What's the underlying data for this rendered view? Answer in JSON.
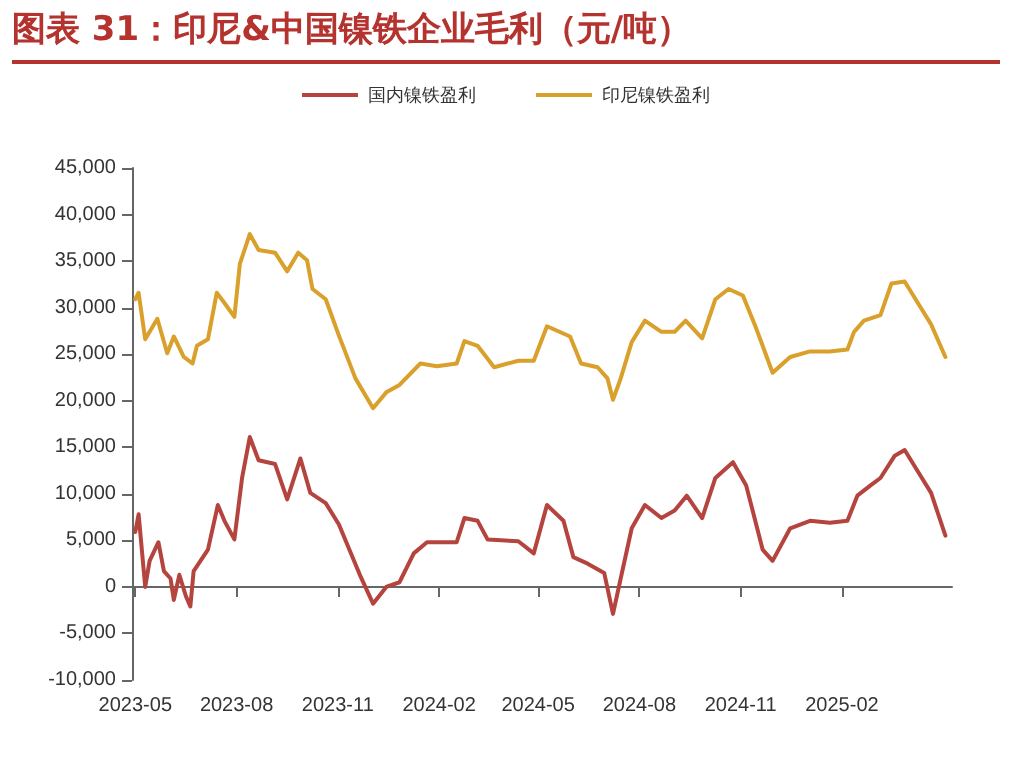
{
  "chart_data": {
    "type": "line",
    "title": "图表 31：印尼&中国镍铁企业毛利（元/吨）",
    "xlim": [
      "2023-04-28",
      "2025-05-12"
    ],
    "xticks": [
      "2023-05",
      "2023-08",
      "2023-11",
      "2024-02",
      "2024-05",
      "2024-08",
      "2024-11",
      "2025-02"
    ],
    "ylim": [
      -10000,
      45000
    ],
    "yticks": [
      {
        "value": -10000,
        "label": "-10,000"
      },
      {
        "value": -5000,
        "label": "-5,000"
      },
      {
        "value": 0,
        "label": "0"
      },
      {
        "value": 5000,
        "label": "5,000"
      },
      {
        "value": 10000,
        "label": "10,000"
      },
      {
        "value": 15000,
        "label": "15,000"
      },
      {
        "value": 20000,
        "label": "20,000"
      },
      {
        "value": 25000,
        "label": "25,000"
      },
      {
        "value": 30000,
        "label": "30,000"
      },
      {
        "value": 35000,
        "label": "35,000"
      },
      {
        "value": 40000,
        "label": "40,000"
      },
      {
        "value": 45000,
        "label": "45,000"
      }
    ],
    "legend": "top",
    "marker": "none",
    "line_style": "solid",
    "series": [
      {
        "name": "国内镍铁盈利",
        "color": "#b5443f",
        "x": [
          "2023-05-01",
          "2023-05-04",
          "2023-05-10",
          "2023-05-14",
          "2023-05-22",
          "2023-05-27",
          "2023-06-02",
          "2023-06-05",
          "2023-06-10",
          "2023-06-16",
          "2023-06-20",
          "2023-06-23",
          "2023-07-06",
          "2023-07-15",
          "2023-07-21",
          "2023-07-30",
          "2023-08-06",
          "2023-08-13",
          "2023-08-21",
          "2023-09-05",
          "2023-09-16",
          "2023-09-28",
          "2023-10-07",
          "2023-10-21",
          "2023-11-02",
          "2023-11-21",
          "2023-12-03",
          "2023-12-15",
          "2023-12-27",
          "2024-01-09",
          "2024-01-21",
          "2024-02-17",
          "2024-02-24",
          "2024-03-07",
          "2024-03-16",
          "2024-04-13",
          "2024-04-27",
          "2024-05-09",
          "2024-05-24",
          "2024-06-02",
          "2024-06-15",
          "2024-06-30",
          "2024-07-08",
          "2024-07-15",
          "2024-07-25",
          "2024-08-06",
          "2024-08-21",
          "2024-09-02",
          "2024-09-13",
          "2024-09-27",
          "2024-10-09",
          "2024-10-25",
          "2024-11-06",
          "2024-11-21",
          "2024-11-30",
          "2024-12-16",
          "2025-01-03",
          "2025-01-21",
          "2025-02-06",
          "2025-02-15",
          "2025-02-27",
          "2025-03-08",
          "2025-03-21",
          "2025-03-30",
          "2025-04-11",
          "2025-04-23",
          "2025-05-06"
        ],
        "values": [
          5900,
          7800,
          0,
          2800,
          4800,
          1700,
          900,
          -1400,
          1300,
          -1000,
          -2100,
          1700,
          4000,
          8800,
          7100,
          5100,
          11700,
          16100,
          13600,
          13200,
          9400,
          13800,
          10100,
          9000,
          6700,
          1300,
          -1800,
          0,
          500,
          3600,
          4800,
          4800,
          7400,
          7100,
          5100,
          4900,
          3600,
          8800,
          7100,
          3200,
          2500,
          1500,
          -2900,
          900,
          6300,
          8800,
          7400,
          8200,
          9800,
          7400,
          11700,
          13400,
          10900,
          4000,
          2800,
          6300,
          7100,
          6900,
          7100,
          9800,
          10900,
          11700,
          14100,
          14700,
          12400,
          10100,
          5500
        ]
      },
      {
        "name": "印尼镍铁盈利",
        "color": "#d9a02c",
        "x": [
          "2023-05-01",
          "2023-05-04",
          "2023-05-10",
          "2023-05-21",
          "2023-05-30",
          "2023-06-05",
          "2023-06-14",
          "2023-06-22",
          "2023-06-26",
          "2023-07-06",
          "2023-07-14",
          "2023-07-21",
          "2023-07-30",
          "2023-08-04",
          "2023-08-13",
          "2023-08-21",
          "2023-09-05",
          "2023-09-16",
          "2023-09-26",
          "2023-10-04",
          "2023-10-09",
          "2023-10-21",
          "2023-11-02",
          "2023-11-17",
          "2023-12-03",
          "2023-12-15",
          "2023-12-27",
          "2024-01-15",
          "2024-01-30",
          "2024-02-17",
          "2024-02-24",
          "2024-03-07",
          "2024-03-22",
          "2024-04-13",
          "2024-04-27",
          "2024-05-09",
          "2024-05-30",
          "2024-06-09",
          "2024-06-24",
          "2024-07-03",
          "2024-07-08",
          "2024-07-15",
          "2024-07-25",
          "2024-08-06",
          "2024-08-21",
          "2024-09-02",
          "2024-09-12",
          "2024-09-27",
          "2024-10-09",
          "2024-10-21",
          "2024-11-03",
          "2024-11-15",
          "2024-11-30",
          "2024-12-16",
          "2025-01-03",
          "2025-01-21",
          "2025-02-06",
          "2025-02-12",
          "2025-02-21",
          "2025-03-08",
          "2025-03-18",
          "2025-03-30",
          "2025-04-11",
          "2025-04-23",
          "2025-05-06"
        ],
        "values": [
          30900,
          31600,
          26600,
          28800,
          25100,
          26900,
          24700,
          24000,
          25900,
          26600,
          31600,
          30500,
          29000,
          34700,
          37900,
          36200,
          35900,
          33900,
          35900,
          35100,
          32000,
          30900,
          27000,
          22400,
          19200,
          20900,
          21700,
          24000,
          23700,
          24000,
          26400,
          25900,
          23600,
          24300,
          24300,
          28000,
          26900,
          24000,
          23600,
          22400,
          20100,
          22400,
          26300,
          28600,
          27400,
          27400,
          28600,
          26700,
          30900,
          32000,
          31300,
          27800,
          23000,
          24700,
          25300,
          25300,
          25500,
          27400,
          28600,
          29200,
          32600,
          32800,
          30500,
          28200,
          24700
        ]
      }
    ]
  }
}
